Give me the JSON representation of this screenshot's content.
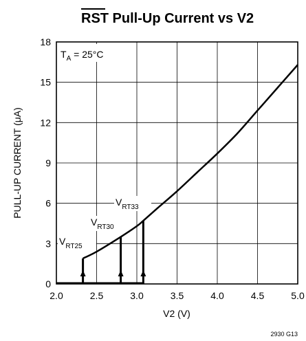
{
  "chart_data": {
    "type": "line",
    "title_overbar": "RST",
    "title_rest": " Pull-Up Current vs V2",
    "xlabel": "V2 (V)",
    "ylabel": "PULL-UP CURRENT (μA)",
    "xlim": [
      2.0,
      5.0
    ],
    "ylim": [
      0,
      18
    ],
    "x_ticks": [
      2.0,
      2.5,
      3.0,
      3.5,
      4.0,
      4.5,
      5.0
    ],
    "x_tick_labels": [
      "2.0",
      "2.5",
      "3.0",
      "3.5",
      "4.0",
      "4.5",
      "5.0"
    ],
    "y_ticks": [
      0,
      3,
      6,
      9,
      12,
      15,
      18
    ],
    "y_tick_labels": [
      "0",
      "3",
      "6",
      "9",
      "12",
      "15",
      "18"
    ],
    "grid": true,
    "series": [
      {
        "x": [
          2.33,
          2.5,
          2.8,
          3.0,
          3.08,
          3.25,
          3.5,
          3.75,
          4.0,
          4.25,
          4.5,
          4.75,
          5.0
        ],
        "y": [
          1.9,
          2.4,
          3.5,
          4.3,
          4.7,
          5.6,
          6.9,
          8.3,
          9.7,
          11.2,
          12.9,
          14.6,
          16.3
        ]
      }
    ],
    "thresholds": [
      {
        "name": "V_RT25",
        "x": 2.33,
        "y": 1.9
      },
      {
        "name": "V_RT30",
        "x": 2.8,
        "y": 3.5
      },
      {
        "name": "V_RT33",
        "x": 3.08,
        "y": 4.7
      }
    ],
    "annotations": {
      "ta_main": "T",
      "ta_sub": "A",
      "ta_rest": " = 25°C",
      "vrt25_main": "V",
      "vrt25_sub": "RT25",
      "vrt30_main": "V",
      "vrt30_sub": "RT30",
      "vrt33_main": "V",
      "vrt33_sub": "RT33"
    },
    "footnote": "2930 G13"
  }
}
